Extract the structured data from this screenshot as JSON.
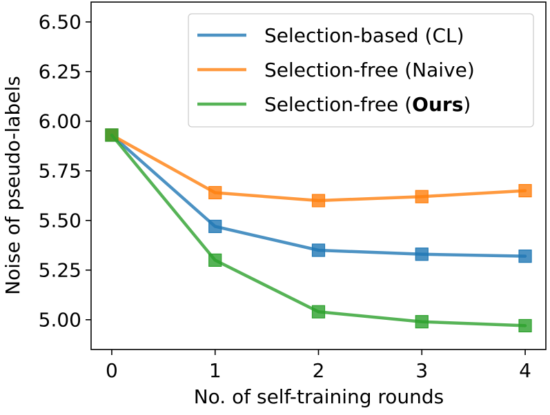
{
  "chart_data": {
    "type": "line",
    "title": "",
    "xlabel": "No. of self-training rounds",
    "ylabel": "Noise of pseudo-labels",
    "x": [
      0,
      1,
      2,
      3,
      4
    ],
    "xlim": [
      -0.2,
      4.2
    ],
    "ylim": [
      4.85,
      6.6
    ],
    "xticks": [
      "0",
      "1",
      "2",
      "3",
      "4"
    ],
    "yticks": [
      "5.00",
      "5.25",
      "5.50",
      "5.75",
      "6.00",
      "6.25",
      "6.50"
    ],
    "ytick_values": [
      5.0,
      5.25,
      5.5,
      5.75,
      6.0,
      6.25,
      6.5
    ],
    "grid": false,
    "legend_position": "top-right",
    "marker": "square",
    "series": [
      {
        "name": "Selection-based (CL)",
        "name_prefix": "Selection-based (CL)",
        "name_bold": "",
        "name_suffix": "",
        "color": "#1f77b4",
        "values": [
          5.93,
          5.47,
          5.35,
          5.33,
          5.32
        ]
      },
      {
        "name": "Selection-free (Naive)",
        "name_prefix": "Selection-free (Naive)",
        "name_bold": "",
        "name_suffix": "",
        "color": "#ff7f0e",
        "values": [
          5.93,
          5.64,
          5.6,
          5.62,
          5.65
        ]
      },
      {
        "name": "Selection-free (Ours)",
        "name_prefix": "Selection-free (",
        "name_bold": "Ours",
        "name_suffix": ")",
        "color": "#2ca02c",
        "values": [
          5.93,
          5.3,
          5.04,
          4.99,
          4.97
        ]
      }
    ]
  }
}
